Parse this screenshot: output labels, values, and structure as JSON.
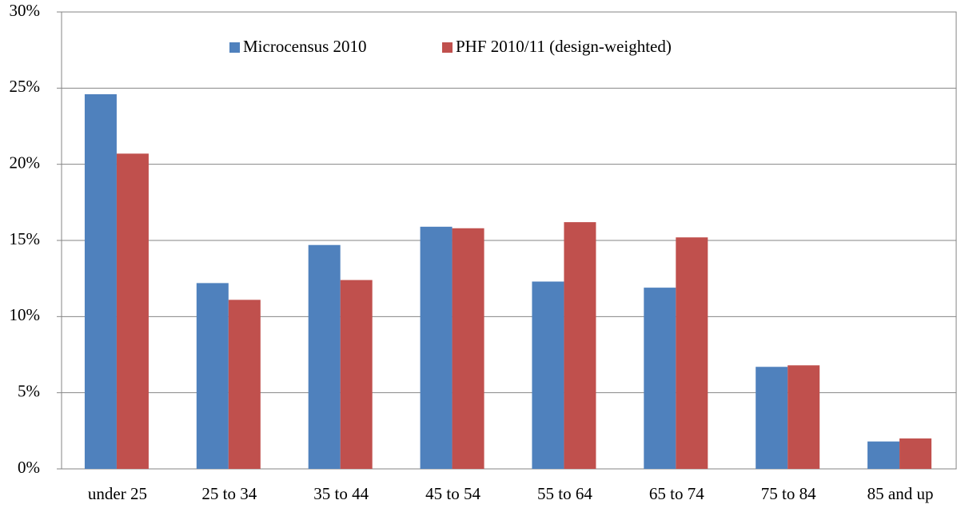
{
  "chart_data": {
    "type": "bar",
    "categories": [
      "under 25",
      "25 to 34",
      "35 to 44",
      "45 to 54",
      "55 to 64",
      "65 to 74",
      "75 to 84",
      "85 and up"
    ],
    "series": [
      {
        "name": "Microcensus 2010",
        "color": "#4f81bd",
        "values": [
          24.6,
          12.2,
          14.7,
          15.9,
          12.3,
          11.9,
          6.7,
          1.8
        ]
      },
      {
        "name": "PHF 2010/11 (design-weighted)",
        "color": "#c0504d",
        "values": [
          20.7,
          11.1,
          12.4,
          15.8,
          16.2,
          15.2,
          6.8,
          2.0
        ]
      }
    ],
    "ylim": [
      0,
      30
    ],
    "yticks": [
      {
        "value": 0,
        "label": "0%"
      },
      {
        "value": 5,
        "label": "5%"
      },
      {
        "value": 10,
        "label": "10%"
      },
      {
        "value": 15,
        "label": "15%"
      },
      {
        "value": 20,
        "label": "20%"
      },
      {
        "value": 25,
        "label": "25%"
      },
      {
        "value": 30,
        "label": "30%"
      }
    ],
    "grid": true,
    "legend": "top"
  }
}
